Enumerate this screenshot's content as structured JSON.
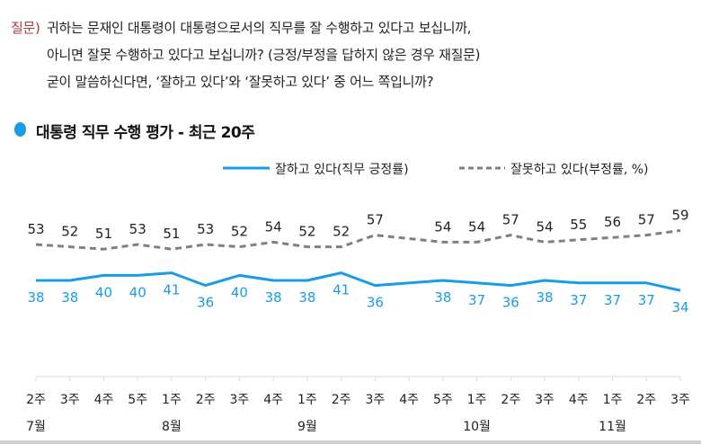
{
  "question": {
    "label": "질문)",
    "lines": [
      "귀하는 문재인 대통령이 대통령으로서의 직무를 잘 수행하고 있다고 보십니까,",
      "아니면 잘못 수행하고 있다고 보십니까? (긍정/부정을 답하지 않은 경우 재질문)",
      "굳이 말씀하신다면, ‘잘하고 있다’와 ‘잘못하고 있다’ 중 어느 쪽입니까?"
    ]
  },
  "chart_data": {
    "type": "line",
    "title": "대통령 직무 수행 평가 - 최근 20주",
    "categories": [
      "2주",
      "3주",
      "4주",
      "5주",
      "1주",
      "2주",
      "3주",
      "4주",
      "1주",
      "2주",
      "3주",
      "4주",
      "5주",
      "1주",
      "2주",
      "3주",
      "4주",
      "1주",
      "2주",
      "3주"
    ],
    "month_labels": [
      {
        "label": "7월",
        "index": 0
      },
      {
        "label": "8월",
        "index": 4
      },
      {
        "label": "9월",
        "index": 8
      },
      {
        "label": "10월",
        "index": 13
      },
      {
        "label": "11월",
        "index": 17
      }
    ],
    "series": [
      {
        "name": "잘하고 있다(직무 긍정률)",
        "style": "solid",
        "color": "#1a9be6",
        "values": [
          38,
          38,
          40,
          40,
          41,
          36,
          40,
          38,
          38,
          41,
          36,
          null,
          38,
          37,
          36,
          38,
          37,
          37,
          37,
          34
        ]
      },
      {
        "name": "잘못하고 있다(부정률, %)",
        "style": "dashed",
        "color": "#808080",
        "values": [
          53,
          52,
          51,
          53,
          51,
          53,
          52,
          54,
          52,
          52,
          57,
          null,
          54,
          54,
          57,
          54,
          55,
          56,
          57,
          59
        ]
      }
    ],
    "grid": false,
    "legend": "top-right"
  }
}
